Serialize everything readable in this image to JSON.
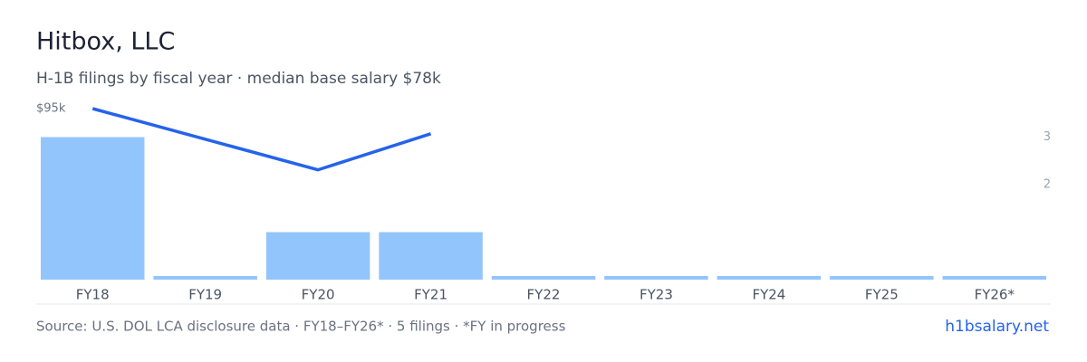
{
  "chart_data": {
    "type": "bar",
    "title": "Hitbox, LLC",
    "subtitle": "H-1B filings by fiscal year · median base salary $78k",
    "categories": [
      "FY18",
      "FY19",
      "FY20",
      "FY21",
      "FY22",
      "FY23",
      "FY24",
      "FY25",
      "FY26*"
    ],
    "series": [
      {
        "type": "bar",
        "color": "#93c5fd",
        "axis": "y2",
        "values": [
          3,
          0,
          1,
          1,
          0,
          0,
          0,
          0,
          0
        ]
      },
      {
        "type": "line",
        "color": "#2563eb",
        "x": [
          "FY18",
          "FY20",
          "FY21"
        ],
        "values": [
          95,
          61,
          81
        ]
      }
    ],
    "ylim": [
      0,
      95
    ],
    "yticks": [
      {
        "value": 95,
        "label": "$95k"
      }
    ],
    "y2lim": [
      0,
      3.6
    ],
    "y2ticks": [
      3,
      2
    ],
    "source": "Source: U.S. DOL LCA disclosure data · FY18–FY26* · 5 filings · *FY in progress",
    "brand": "h1bsalary.net"
  }
}
